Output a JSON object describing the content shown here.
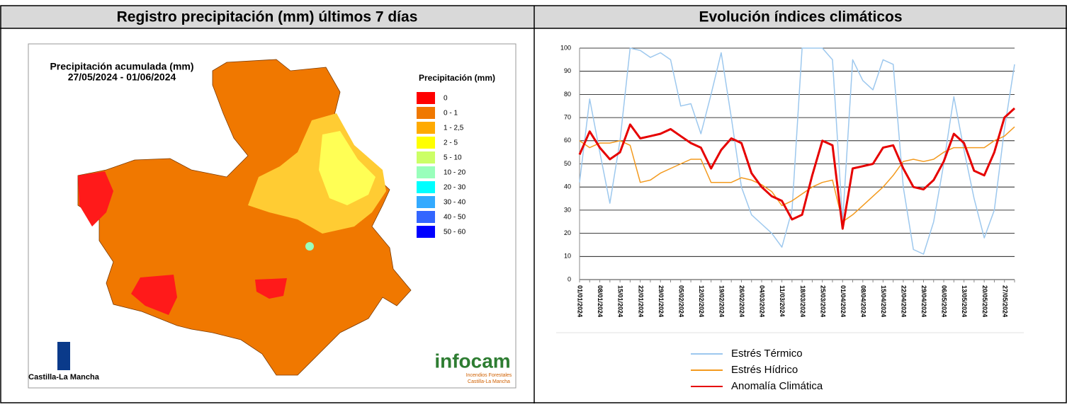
{
  "header": {
    "left": "Registro precipitación (mm) últimos 7 días",
    "right": "Evolución índices climáticos"
  },
  "map": {
    "title_lines": [
      "Precipitación acumulada (mm)",
      "27/05/2024 - 01/06/2024"
    ],
    "legend_title": "Precipitación (mm)",
    "legend": [
      {
        "label": "0",
        "color": "#ff0000"
      },
      {
        "label": "0 - 1",
        "color": "#f07800"
      },
      {
        "label": "1 - 2,5",
        "color": "#ffaa00"
      },
      {
        "label": "2 - 5",
        "color": "#ffff00"
      },
      {
        "label": "5 - 10",
        "color": "#ccff66"
      },
      {
        "label": "10 - 20",
        "color": "#99ffbb"
      },
      {
        "label": "20 - 30",
        "color": "#00ffff"
      },
      {
        "label": "30 - 40",
        "color": "#33aaff"
      },
      {
        "label": "40 - 50",
        "color": "#3366ff"
      },
      {
        "label": "50 - 60",
        "color": "#0000ff"
      }
    ],
    "region_label": "Castilla-La Mancha",
    "brand": "infocam",
    "brand_sub": [
      "Incendios Forestales",
      "Castilla-La Mancha"
    ]
  },
  "chart_data": {
    "type": "line",
    "categories": [
      "01/01/2024",
      null,
      "08/01/2024",
      null,
      "15/01/2024",
      null,
      "22/01/2024",
      null,
      "29/01/2024",
      null,
      "05/02/2024",
      null,
      "12/02/2024",
      null,
      "19/02/2024",
      null,
      "26/02/2024",
      null,
      "04/03/2024",
      null,
      "11/03/2024",
      null,
      "18/03/2024",
      null,
      "25/03/2024",
      null,
      "01/04/2024",
      null,
      "08/04/2024",
      null,
      "15/04/2024",
      null,
      "22/04/2024",
      null,
      "29/04/2024",
      null,
      "06/05/2024",
      null,
      "13/05/2024",
      null,
      "20/05/2024",
      null,
      "27/05/2024",
      null
    ],
    "series": [
      {
        "name": "Estrés Térmico",
        "color": "#9dc8ee",
        "values": [
          42,
          78,
          55,
          33,
          60,
          100,
          99,
          96,
          98,
          95,
          75,
          76,
          63,
          80,
          98,
          70,
          40,
          28,
          24,
          20,
          14,
          30,
          100,
          100,
          100,
          95,
          25,
          95,
          86,
          82,
          95,
          93,
          40,
          13,
          11,
          25,
          50,
          79,
          56,
          35,
          18,
          30,
          65,
          93
        ]
      },
      {
        "name": "Estrés Hídrico",
        "color": "#f39a1e",
        "values": [
          60,
          57,
          59,
          59,
          60,
          58,
          42,
          43,
          46,
          48,
          50,
          52,
          52,
          42,
          42,
          42,
          44,
          43,
          41,
          38,
          32,
          34,
          37,
          40,
          42,
          43,
          25,
          28,
          32,
          36,
          40,
          45,
          51,
          52,
          51,
          52,
          55,
          57,
          57,
          57,
          57,
          60,
          62,
          66
        ]
      },
      {
        "name": "Anomalía Climática",
        "color": "#e60000",
        "values": [
          54,
          64,
          57,
          52,
          55,
          67,
          61,
          62,
          63,
          65,
          62,
          59,
          57,
          48,
          56,
          61,
          59,
          46,
          40,
          36,
          34,
          26,
          28,
          45,
          60,
          58,
          22,
          48,
          49,
          50,
          57,
          58,
          48,
          40,
          39,
          43,
          51,
          63,
          59,
          47,
          45,
          55,
          70,
          74
        ]
      }
    ],
    "ylim": [
      0,
      100
    ],
    "yticks": [
      0,
      10,
      20,
      30,
      40,
      50,
      60,
      70,
      80,
      90,
      100
    ],
    "grid": true,
    "legend": "bottom"
  }
}
